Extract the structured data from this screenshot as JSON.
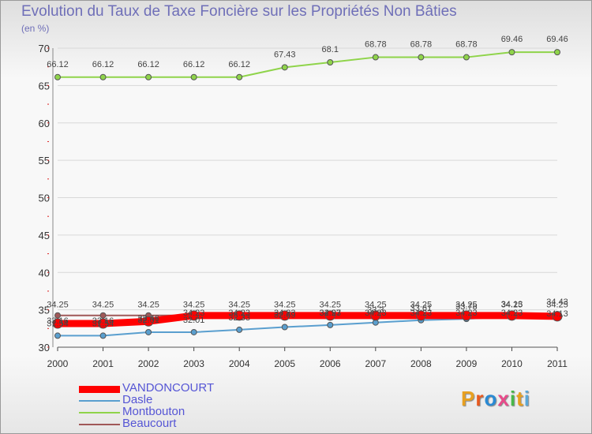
{
  "chart_data": {
    "type": "line",
    "title": "Evolution du Taux de Taxe Foncière sur les Propriétés Non Bâties",
    "subtitle": "(en %)",
    "xlabel": "",
    "ylabel": "",
    "ylim": [
      30,
      70
    ],
    "yticks": [
      30,
      35,
      40,
      45,
      50,
      55,
      60,
      65,
      70
    ],
    "x": [
      "2000",
      "2001",
      "2002",
      "2003",
      "2004",
      "2005",
      "2006",
      "2007",
      "2008",
      "2009",
      "2010",
      "2011"
    ],
    "series": [
      {
        "name": "VANDONCOURT",
        "color": "#ff0000",
        "values": [
          33.16,
          33.16,
          33.46,
          34.23,
          34.23,
          34.23,
          34.23,
          34.23,
          34.23,
          34.23,
          34.23,
          34.13
        ],
        "labels": [
          "33.16",
          "33.16",
          "33.46",
          "34.23",
          "34.23",
          "34.23",
          "34.23",
          "34.23",
          "34.23",
          "34.23",
          "34.23",
          "34.13"
        ]
      },
      {
        "name": "Dasle",
        "color": "#5a9fcf",
        "values": [
          31.54,
          31.54,
          32.01,
          32.01,
          32.33,
          32.69,
          32.97,
          33.3,
          33.61,
          33.78,
          34.13,
          34.43
        ],
        "labels": [
          "31.54",
          "31.54",
          "32.01",
          "32.01",
          "32.33",
          "32.69",
          "32.97",
          "33.3",
          "33.61",
          "33.78",
          "34.13",
          "34.43"
        ]
      },
      {
        "name": "Montbouton",
        "color": "#8fd44a",
        "values": [
          66.12,
          66.12,
          66.12,
          66.12,
          66.12,
          67.43,
          68.1,
          68.78,
          68.78,
          68.78,
          69.46,
          69.46
        ],
        "labels": [
          "66.12",
          "66.12",
          "66.12",
          "66.12",
          "66.12",
          "67.43",
          "68.1",
          "68.78",
          "68.78",
          "68.78",
          "69.46",
          "69.46"
        ]
      },
      {
        "name": "Beaucourt",
        "color": "#a05858",
        "values": [
          34.25,
          34.25,
          34.25,
          34.25,
          34.25,
          34.25,
          34.25,
          34.25,
          34.25,
          34.25,
          34.25,
          34.25
        ],
        "labels": [
          "34.25",
          "34.25",
          "34.25",
          "34.25",
          "34.25",
          "34.25",
          "34.25",
          "34.25",
          "34.25",
          "34.25",
          "34.25",
          "34.25"
        ]
      }
    ]
  },
  "brand": {
    "logo": "Proxiti",
    "letter_colors": [
      "#e8a020",
      "#e85a20",
      "#2a8ad4",
      "#e84a8a",
      "#48b848",
      "#e8a020",
      "#5aa8d8"
    ]
  }
}
